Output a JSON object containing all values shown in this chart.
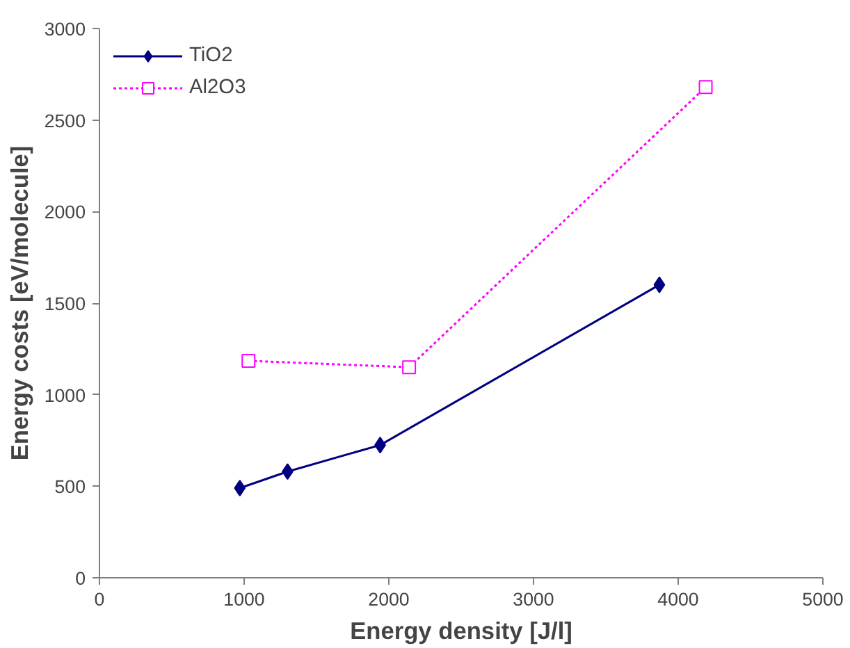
{
  "chart_data": {
    "type": "line",
    "xlabel": "Energy density [J/l]",
    "ylabel": "Energy costs [eV/molecule]",
    "xlim": [
      0,
      5000
    ],
    "ylim": [
      0,
      3000
    ],
    "xticks": [
      0,
      1000,
      2000,
      3000,
      4000,
      5000
    ],
    "yticks": [
      0,
      500,
      1000,
      1500,
      2000,
      2500,
      3000
    ],
    "grid": false,
    "legend": "top left",
    "series": [
      {
        "name": "TiO2",
        "color": "#000080",
        "x": [
          970,
          1300,
          1940,
          3870
        ],
        "values": [
          490,
          580,
          725,
          1600
        ],
        "marker": "diamond",
        "line_style": "solid"
      },
      {
        "name": "Al2O3",
        "color": "#ff00ff",
        "x": [
          1030,
          2140,
          4190
        ],
        "values": [
          1185,
          1150,
          2680
        ],
        "marker": "square",
        "line_style": "dotted"
      }
    ]
  }
}
